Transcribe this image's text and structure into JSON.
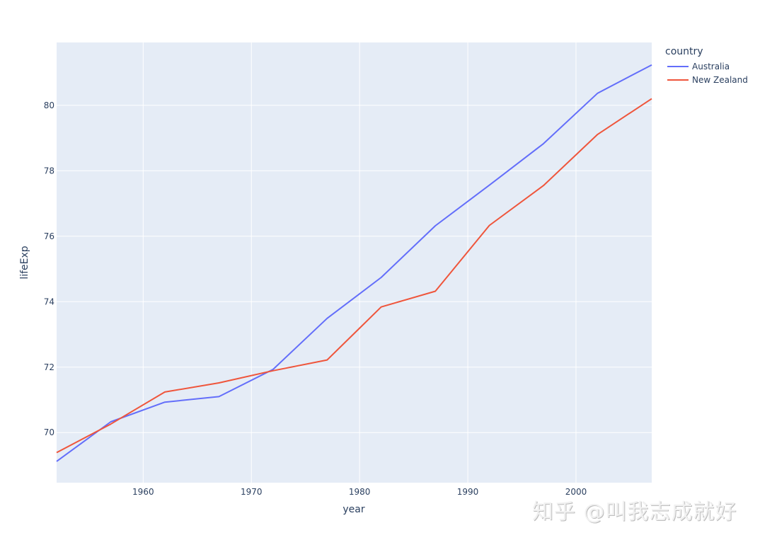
{
  "chart_data": {
    "type": "line",
    "title": "",
    "xlabel": "year",
    "ylabel": "lifeExp",
    "x": [
      1952,
      1957,
      1962,
      1967,
      1972,
      1977,
      1982,
      1987,
      1992,
      1997,
      2002,
      2007
    ],
    "xlim": [
      1952,
      2007
    ],
    "ylim": [
      68.47,
      81.92
    ],
    "x_ticks": [
      1960,
      1970,
      1980,
      1990,
      2000
    ],
    "y_ticks": [
      70,
      72,
      74,
      76,
      78,
      80
    ],
    "grid": true,
    "legend_position": "right-top",
    "legend_title": "country",
    "series": [
      {
        "name": "Australia",
        "color": "#636efa",
        "values": [
          69.12,
          70.33,
          70.93,
          71.1,
          71.93,
          73.49,
          74.74,
          76.32,
          77.56,
          78.83,
          80.37,
          81.235
        ]
      },
      {
        "name": "New Zealand",
        "color": "#ef553b",
        "values": [
          69.39,
          70.26,
          71.24,
          71.52,
          71.89,
          72.22,
          73.84,
          74.32,
          76.33,
          77.55,
          79.11,
          80.204
        ]
      }
    ]
  },
  "legend": {
    "title": "country",
    "items": [
      {
        "label": "Australia",
        "color": "#636efa"
      },
      {
        "label": "New Zealand",
        "color": "#ef553b"
      }
    ]
  },
  "colors": {
    "plot_bg": "#e5ecf6",
    "grid": "#ffffff",
    "text": "#2a3f5f"
  },
  "watermark": "知乎 @叫我志成就好"
}
